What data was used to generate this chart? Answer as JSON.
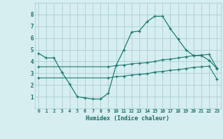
{
  "xlabel": "Humidex (Indice chaleur)",
  "background_color": "#d6eef0",
  "grid_color": "#aacdd3",
  "line_color": "#1a7a6e",
  "xlim": [
    -0.5,
    23.5
  ],
  "ylim": [
    0,
    9
  ],
  "x_ticks": [
    0,
    1,
    2,
    3,
    4,
    5,
    6,
    7,
    8,
    9,
    10,
    11,
    12,
    13,
    14,
    15,
    16,
    17,
    18,
    19,
    20,
    21,
    22,
    23
  ],
  "y_ticks": [
    1,
    2,
    3,
    4,
    5,
    6,
    7,
    8
  ],
  "series": {
    "line1_x": [
      0,
      1,
      2,
      3,
      4,
      5,
      6,
      7,
      8,
      9,
      10,
      11,
      12,
      13,
      14,
      15,
      16,
      17,
      18,
      19,
      20,
      21,
      22,
      23
    ],
    "line1_y": [
      4.7,
      4.3,
      4.3,
      3.1,
      2.1,
      1.0,
      0.9,
      0.8,
      0.8,
      1.3,
      3.65,
      5.0,
      6.5,
      6.6,
      7.4,
      7.85,
      7.85,
      6.8,
      5.9,
      5.0,
      4.5,
      4.5,
      4.1,
      3.4
    ],
    "line2_x": [
      0,
      9,
      10,
      11,
      12,
      13,
      14,
      15,
      16,
      17,
      18,
      19,
      20,
      21,
      22,
      23
    ],
    "line2_y": [
      3.55,
      3.55,
      3.65,
      3.7,
      3.8,
      3.85,
      3.9,
      4.0,
      4.15,
      4.2,
      4.3,
      4.4,
      4.5,
      4.55,
      4.6,
      3.45
    ],
    "line3_x": [
      0,
      9,
      10,
      11,
      12,
      13,
      14,
      15,
      16,
      17,
      18,
      19,
      20,
      21,
      22,
      23
    ],
    "line3_y": [
      2.6,
      2.6,
      2.7,
      2.75,
      2.85,
      2.9,
      2.95,
      3.1,
      3.15,
      3.25,
      3.3,
      3.4,
      3.5,
      3.55,
      3.6,
      2.5
    ]
  }
}
